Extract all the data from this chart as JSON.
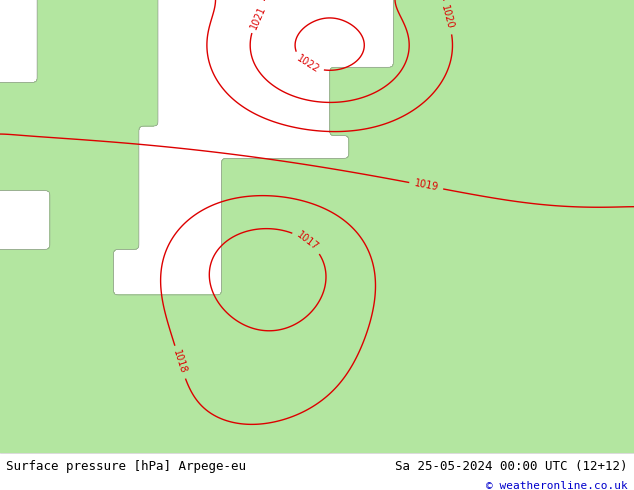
{
  "title_left": "Surface pressure [hPa] Arpege-eu",
  "title_right": "Sa 25-05-2024 00:00 UTC (12+12)",
  "copyright": "© weatheronline.co.uk",
  "bg_sea_color": "#d8d8d8",
  "bg_land_color": "#b3e6a0",
  "contour_color": "#dd0000",
  "coast_color": "#888888",
  "text_color_bottom": "#000000",
  "copyright_color": "#0000cc",
  "font_size_bottom": 9,
  "font_size_copyright": 8,
  "contour_levels": [
    1017,
    1018,
    1019,
    1020,
    1021,
    1022
  ],
  "label_fontsize": 7
}
